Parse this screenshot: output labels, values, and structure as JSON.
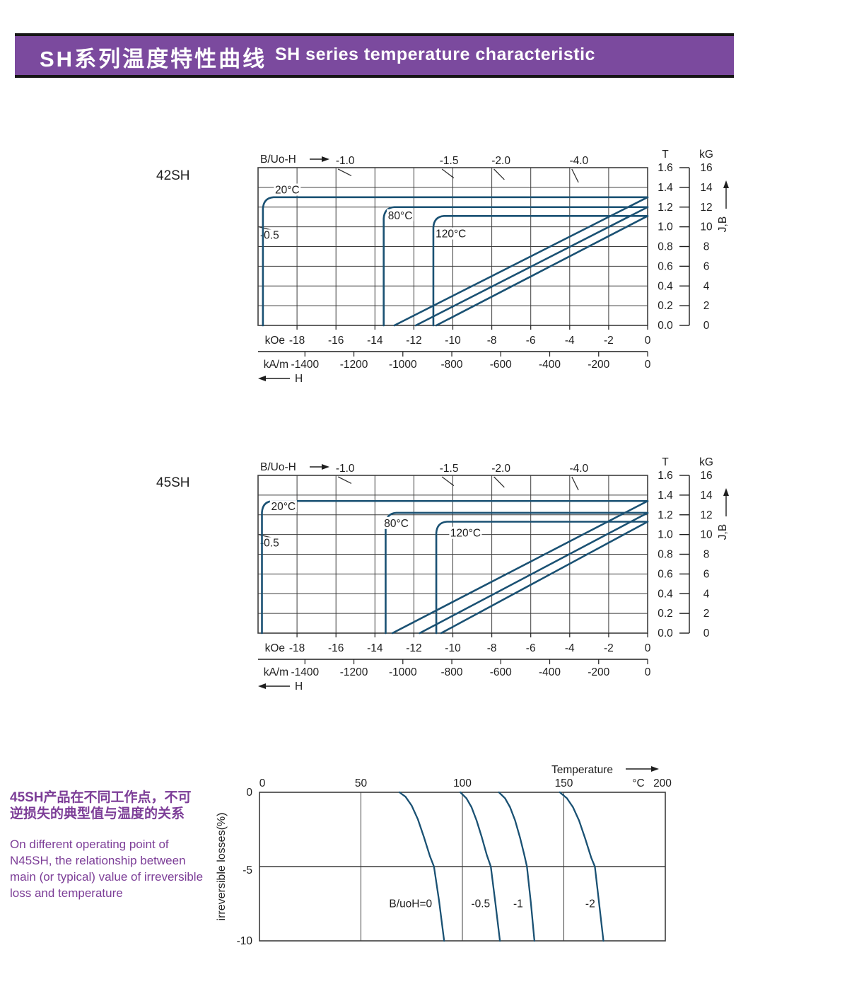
{
  "header": {
    "title_zh": "SH系列温度特性曲线",
    "title_en": "SH  series temperature characteristic"
  },
  "side_note": {
    "zh": [
      "45SH产品在不同工作点，不可",
      "逆损失的典型值与温度的关系"
    ],
    "en": [
      "On different operating point of",
      "N45SH,  the relationship between",
      "main (or typical) value of irreversible",
      "loss and temperature"
    ]
  },
  "colors": {
    "header_bg": "#7b4a9e",
    "purple_text": "#7c3d97",
    "curve_blue": "#1a5173",
    "grid_gray": "#3d3d3d",
    "text_dark": "#1e1e1e"
  },
  "chart_data": [
    {
      "type": "line",
      "id": "42SH",
      "grade": "42SH",
      "load_axis_label": "B/Uo-H",
      "x_range_koe": [
        -20,
        0
      ],
      "y_range_T": [
        0,
        1.6
      ],
      "y_range_kG": [
        0,
        16
      ],
      "t_unit": "T",
      "kg_unit": "kG",
      "jb_label": "J,B",
      "h_label": "H",
      "koe_unit": "kOe",
      "kam_unit": "kA/m",
      "t_ticks": [
        "1.6",
        "1.4",
        "1.2",
        "1.0",
        "0.8",
        "0.6",
        "0.4",
        "0.2",
        "0.0"
      ],
      "kg_ticks": [
        "16",
        "14",
        "12",
        "10",
        "8",
        "6",
        "4",
        "2",
        "0"
      ],
      "koe_ticks": [
        -18,
        -16,
        -14,
        -12,
        -10,
        -8,
        -6,
        -4,
        -2,
        0
      ],
      "kam_ticks": [
        -1400,
        -1200,
        -1000,
        -800,
        -600,
        -400,
        -200,
        0
      ],
      "load_lines": [
        {
          "label": "-1.0",
          "ratio": 1.0
        },
        {
          "label": "-1.5",
          "ratio": 1.5
        },
        {
          "label": "-2.0",
          "ratio": 2.0
        },
        {
          "label": "-4.0",
          "ratio": 4.0
        }
      ],
      "edge_load_line": {
        "label": "-0.5",
        "ratio": 0.5,
        "label_T": 0.88
      },
      "curves": [
        {
          "label": "20°C",
          "br_T": 1.3,
          "hcj_koe": -19.75,
          "b_zero_koe": -13.0,
          "label_at": [
            -18.5,
            1.345
          ]
        },
        {
          "label": "80°C",
          "br_T": 1.2,
          "hcj_koe": -13.55,
          "b_zero_koe": -11.9,
          "label_at": [
            -12.7,
            1.085
          ]
        },
        {
          "label": "120°C",
          "br_T": 1.11,
          "hcj_koe": -11.0,
          "b_zero_koe": -10.85,
          "label_at": [
            -10.1,
            0.9
          ]
        }
      ]
    },
    {
      "type": "line",
      "id": "45SH",
      "grade": "45SH",
      "load_axis_label": "B/Uo-H",
      "x_range_koe": [
        -20,
        0
      ],
      "y_range_T": [
        0,
        1.6
      ],
      "y_range_kG": [
        0,
        16
      ],
      "t_unit": "T",
      "kg_unit": "kG",
      "jb_label": "J,B",
      "h_label": "H",
      "koe_unit": "kOe",
      "kam_unit": "kA/m",
      "t_ticks": [
        "1.6",
        "1.4",
        "1.2",
        "1.0",
        "0.8",
        "0.6",
        "0.4",
        "0.2",
        "0.0"
      ],
      "kg_ticks": [
        "16",
        "14",
        "12",
        "10",
        "8",
        "6",
        "4",
        "2",
        "0"
      ],
      "koe_ticks": [
        -18,
        -16,
        -14,
        -12,
        -10,
        -8,
        -6,
        -4,
        -2,
        0
      ],
      "kam_ticks": [
        -1400,
        -1200,
        -1000,
        -800,
        -600,
        -400,
        -200,
        0
      ],
      "load_lines": [
        {
          "label": "-1.0",
          "ratio": 1.0
        },
        {
          "label": "-1.5",
          "ratio": 1.5
        },
        {
          "label": "-2.0",
          "ratio": 2.0
        },
        {
          "label": "-4.0",
          "ratio": 4.0
        }
      ],
      "edge_load_line": {
        "label": "-0.5",
        "ratio": 0.5,
        "label_T": 0.88
      },
      "curves": [
        {
          "label": "20°C",
          "br_T": 1.34,
          "hcj_koe": -19.8,
          "b_zero_koe": -13.1,
          "label_at": [
            -18.7,
            1.255
          ]
        },
        {
          "label": "80°C",
          "br_T": 1.22,
          "hcj_koe": -13.45,
          "b_zero_koe": -11.7,
          "label_at": [
            -12.9,
            1.085
          ]
        },
        {
          "label": "120°C",
          "br_T": 1.13,
          "hcj_koe": -10.85,
          "b_zero_koe": -10.6,
          "label_at": [
            -9.35,
            0.985
          ]
        }
      ]
    },
    {
      "type": "line",
      "id": "irreversible-loss",
      "x_axis_label": "Temperature",
      "x_unit": "°C",
      "y_axis_label": "irreversible  losses(%)",
      "x_range": [
        0,
        200
      ],
      "y_range": [
        -10,
        0
      ],
      "x_ticks": [
        "0",
        "50",
        "100",
        "150",
        "200"
      ],
      "y_ticks": [
        "0",
        "-5",
        "-10"
      ],
      "curves": [
        {
          "label": "B/uoH=0",
          "label_at": [
            74.5,
            -7.5
          ],
          "points": [
            [
              69,
              0
            ],
            [
              72,
              -0.3
            ],
            [
              75,
              -0.9
            ],
            [
              78,
              -1.8
            ],
            [
              81,
              -3.0
            ],
            [
              84,
              -4.3
            ],
            [
              86,
              -5
            ],
            [
              88.5,
              -7.3
            ],
            [
              91,
              -10
            ]
          ]
        },
        {
          "label": "-0.5",
          "label_at": [
            109,
            -7.5
          ],
          "points": [
            [
              99,
              0
            ],
            [
              102,
              -0.4
            ],
            [
              104.5,
              -1.0
            ],
            [
              107,
              -1.9
            ],
            [
              109.5,
              -3.0
            ],
            [
              112,
              -4.2
            ],
            [
              114,
              -5
            ],
            [
              116.3,
              -7.5
            ],
            [
              118.5,
              -10
            ]
          ]
        },
        {
          "label": "-1",
          "label_at": [
            127.5,
            -7.5
          ],
          "points": [
            [
              118,
              0
            ],
            [
              121,
              -0.4
            ],
            [
              123.5,
              -1.0
            ],
            [
              126,
              -1.9
            ],
            [
              128.5,
              -3.1
            ],
            [
              130.5,
              -4.2
            ],
            [
              131.8,
              -5
            ],
            [
              133.8,
              -7.5
            ],
            [
              135.5,
              -10
            ]
          ]
        },
        {
          "label": "-2",
          "label_at": [
            163,
            -7.5
          ],
          "points": [
            [
              148,
              0
            ],
            [
              151.5,
              -0.4
            ],
            [
              154.5,
              -1.0
            ],
            [
              157.5,
              -1.9
            ],
            [
              160.5,
              -3.1
            ],
            [
              163.5,
              -4.4
            ],
            [
              165.3,
              -5
            ],
            [
              167.5,
              -7.6
            ],
            [
              169.5,
              -10
            ]
          ]
        }
      ]
    }
  ]
}
